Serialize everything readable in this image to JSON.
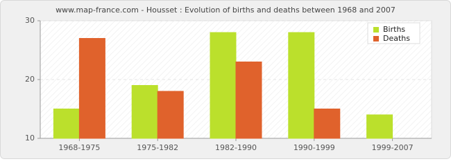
{
  "chart_data": {
    "type": "bar",
    "title": "www.map-france.com - Housset : Evolution of births and deaths between 1968 and 2007",
    "categories": [
      "1968-1975",
      "1975-1982",
      "1982-1990",
      "1990-1999",
      "1999-2007"
    ],
    "series": [
      {
        "name": "Births",
        "color": "#bbe02c",
        "values": [
          15,
          19,
          28,
          28,
          14
        ]
      },
      {
        "name": "Deaths",
        "color": "#e0622c",
        "values": [
          27,
          18,
          23,
          15,
          10
        ]
      }
    ],
    "ylim": [
      10,
      30
    ],
    "yticks": [
      10,
      20,
      30
    ],
    "grid": true,
    "legend": "top-right"
  }
}
